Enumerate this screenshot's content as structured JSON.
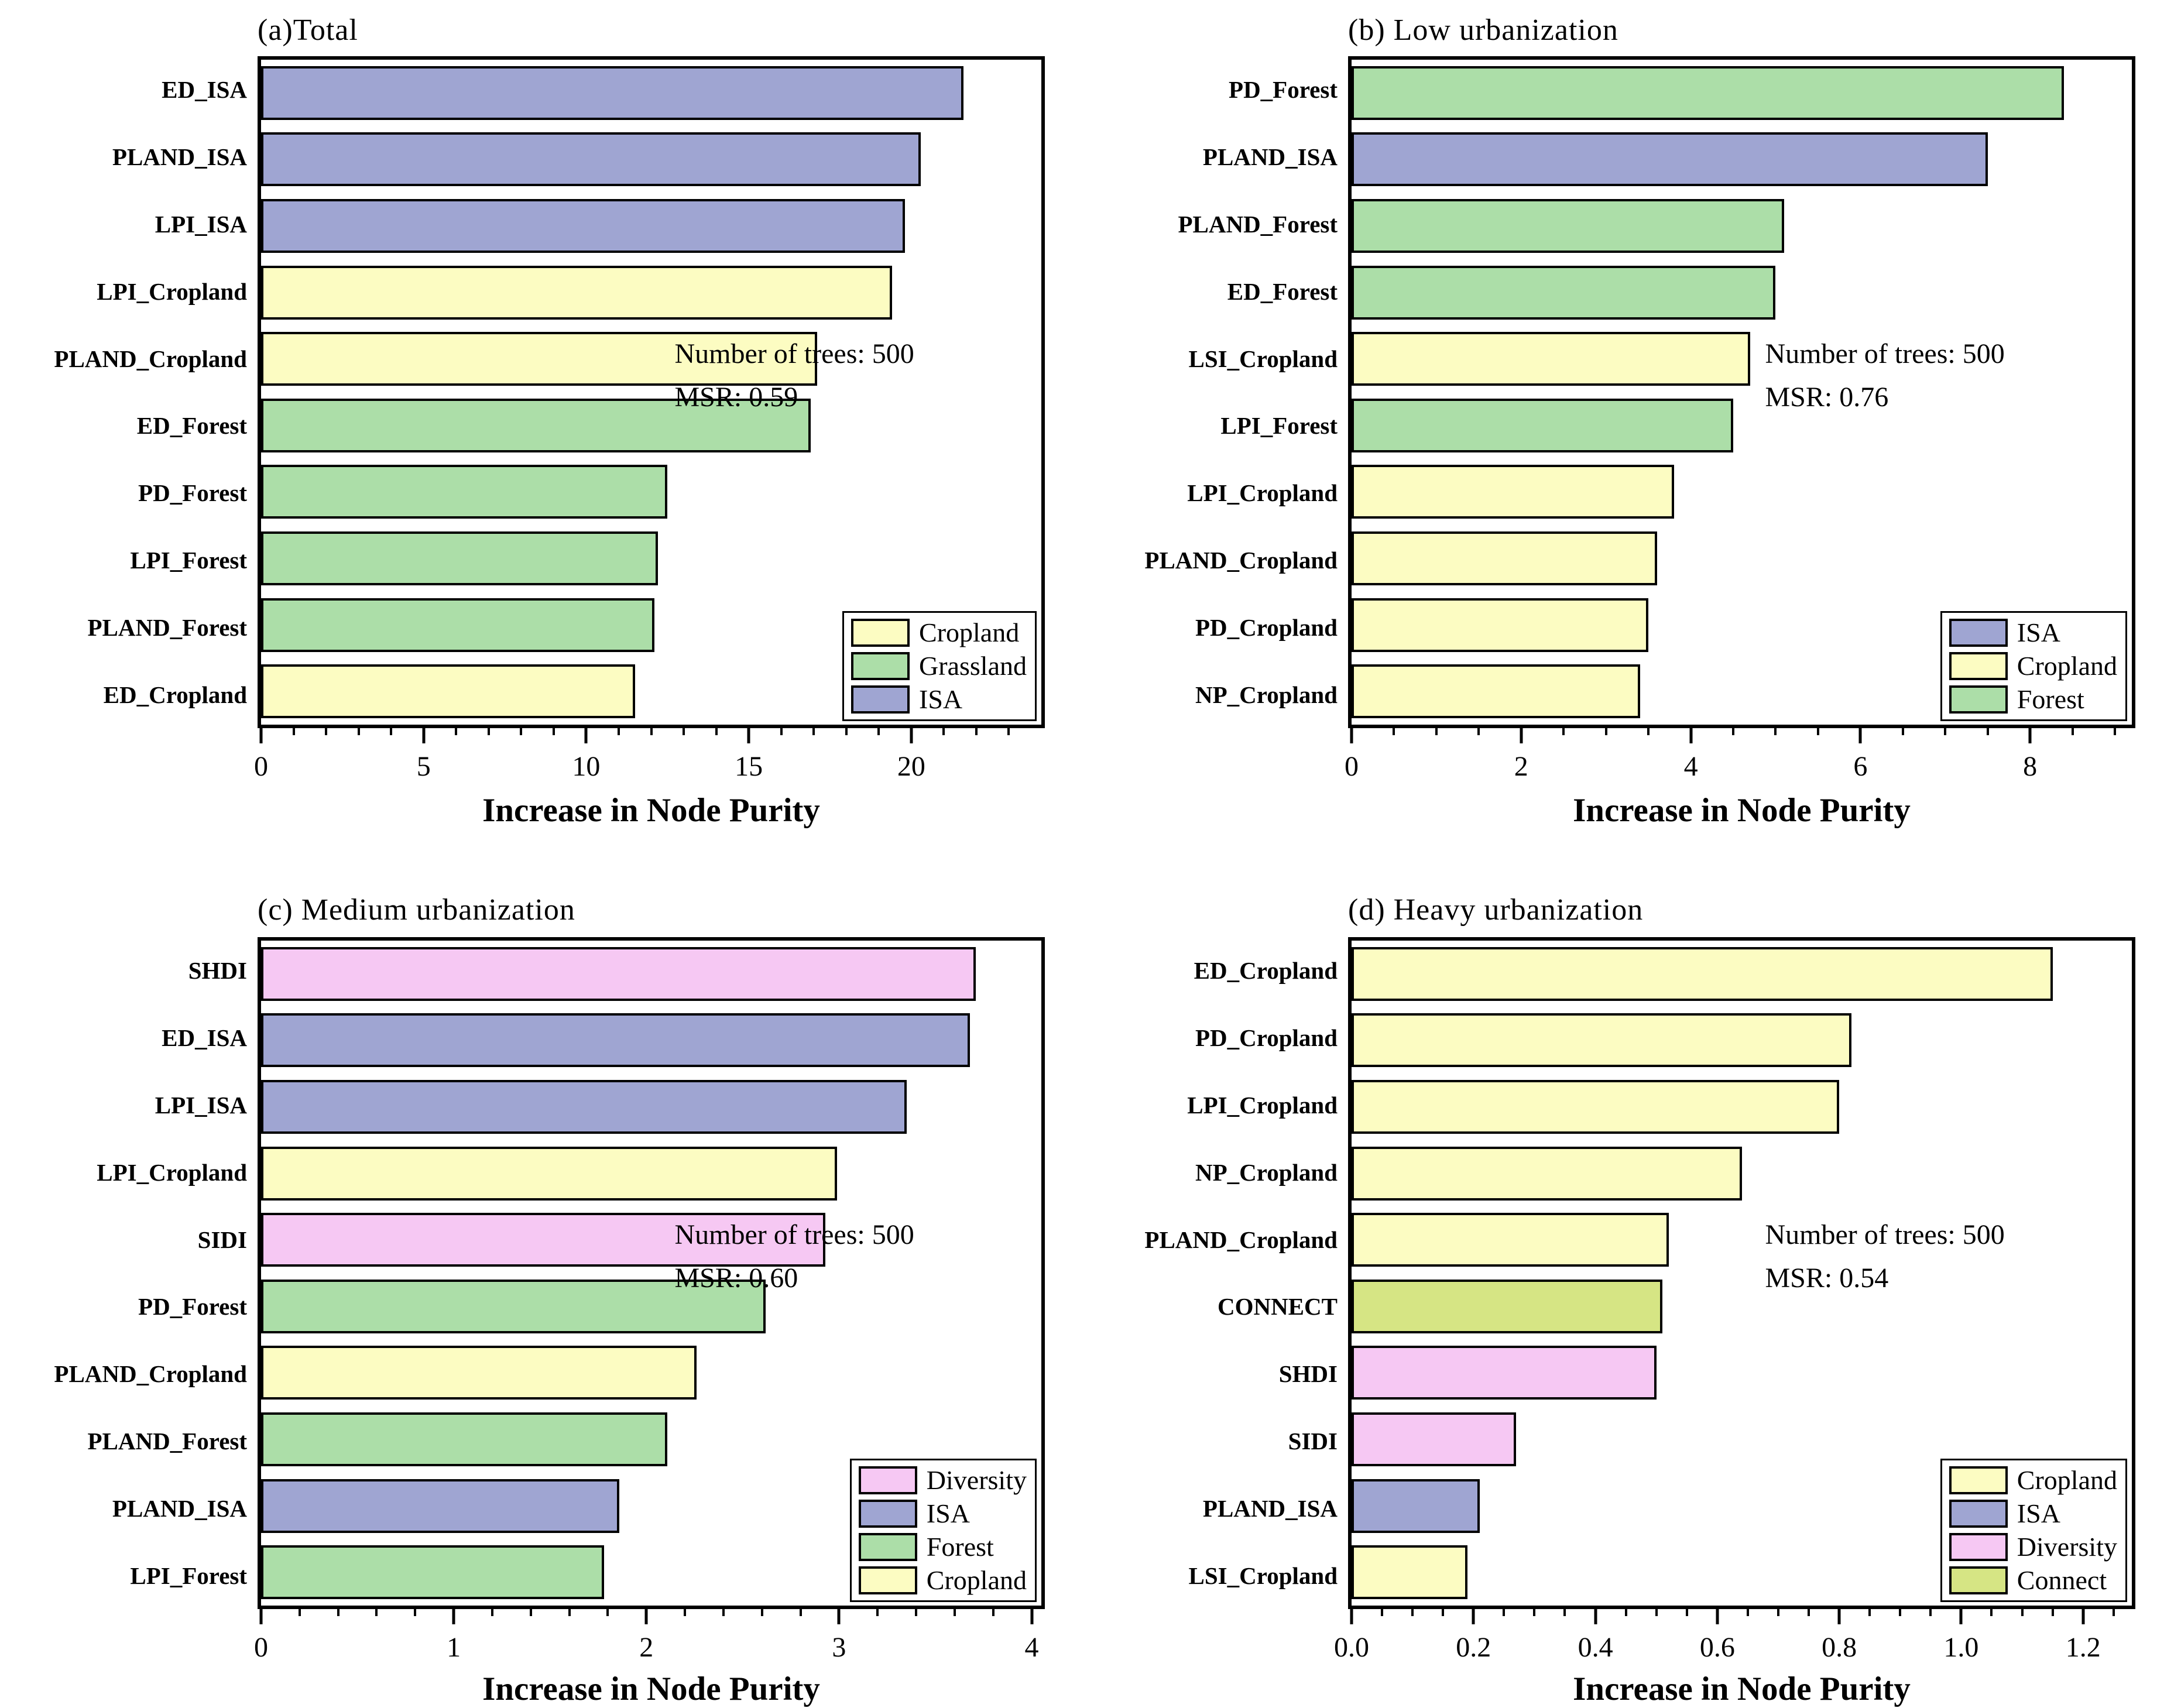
{
  "figure": {
    "background": "#ffffff",
    "xlabel_shared": "Increase in Node Purity"
  },
  "colors": {
    "Cropland": "#FCFCC2",
    "Grassland": "#ACDEA8",
    "Forest": "#ACDEA8",
    "ISA": "#9FA5D2",
    "Diversity": "#F6C8F3",
    "Connect": "#D6E584"
  },
  "chart_data": [
    {
      "type": "bar",
      "orientation": "horizontal",
      "title": "(a)Total",
      "xlabel": "Increase in Node Purity",
      "annotation": [
        "Number of trees: 500",
        "MSR: 0.59"
      ],
      "categories": [
        "ED_ISA",
        "PLAND_ISA",
        "LPI_ISA",
        "LPI_Cropland",
        "PLAND_Cropland",
        "ED_Forest",
        "PD_Forest",
        "LPI_Forest",
        "PLAND_Forest",
        "ED_Cropland"
      ],
      "values": [
        21.6,
        20.3,
        19.8,
        19.4,
        17.1,
        16.9,
        12.5,
        12.2,
        12.1,
        11.5
      ],
      "groups": [
        "ISA",
        "ISA",
        "ISA",
        "Cropland",
        "Cropland",
        "Grassland",
        "Grassland",
        "Grassland",
        "Grassland",
        "Cropland"
      ],
      "xlim": [
        0,
        24
      ],
      "xtick_values": [
        0,
        5,
        10,
        15,
        20
      ],
      "xtick_labels": [
        "0",
        "5",
        "10",
        "15",
        "20"
      ],
      "minor_step": 1,
      "grid": false,
      "legend": [
        "Cropland",
        "Grassland",
        "ISA"
      ],
      "legend_position": "lower right"
    },
    {
      "type": "bar",
      "orientation": "horizontal",
      "title": "(b) Low urbanization",
      "xlabel": "Increase in Node Purity",
      "annotation": [
        "Number of trees: 500",
        "MSR: 0.76"
      ],
      "categories": [
        "PD_Forest",
        "PLAND_ISA",
        "PLAND_Forest",
        "ED_Forest",
        "LSI_Cropland",
        "LPI_Forest",
        "LPI_Cropland",
        "PLAND_Cropland",
        "PD_Cropland",
        "NP_Cropland"
      ],
      "values": [
        8.4,
        7.5,
        5.1,
        5.0,
        4.7,
        4.5,
        3.8,
        3.6,
        3.5,
        3.4
      ],
      "groups": [
        "Forest",
        "ISA",
        "Forest",
        "Forest",
        "Cropland",
        "Forest",
        "Cropland",
        "Cropland",
        "Cropland",
        "Cropland"
      ],
      "xlim": [
        0,
        9.2
      ],
      "xtick_values": [
        0,
        2,
        4,
        6,
        8
      ],
      "xtick_labels": [
        "0",
        "2",
        "4",
        "6",
        "8"
      ],
      "minor_step": 0.5,
      "grid": false,
      "legend": [
        "ISA",
        "Cropland",
        "Forest"
      ],
      "legend_position": "lower right"
    },
    {
      "type": "bar",
      "orientation": "horizontal",
      "title": "(c) Medium urbanization",
      "xlabel": "Increase in Node Purity",
      "annotation": [
        "Number of trees: 500",
        "MSR: 0.60"
      ],
      "categories": [
        "SHDI",
        "ED_ISA",
        "LPI_ISA",
        "LPI_Cropland",
        "SIDI",
        "PD_Forest",
        "PLAND_Cropland",
        "PLAND_Forest",
        "PLAND_ISA",
        "LPI_Forest"
      ],
      "values": [
        3.71,
        3.68,
        3.35,
        2.99,
        2.93,
        2.62,
        2.26,
        2.11,
        1.86,
        1.78
      ],
      "groups": [
        "Diversity",
        "ISA",
        "ISA",
        "Cropland",
        "Diversity",
        "Forest",
        "Cropland",
        "Forest",
        "ISA",
        "Forest"
      ],
      "xlim": [
        0,
        4.05
      ],
      "xtick_values": [
        0,
        1,
        2,
        3,
        4
      ],
      "xtick_labels": [
        "0",
        "1",
        "2",
        "3",
        "4"
      ],
      "minor_step": 0.2,
      "grid": false,
      "legend": [
        "Diversity",
        "ISA",
        "Forest",
        "Cropland"
      ],
      "legend_position": "lower right"
    },
    {
      "type": "bar",
      "orientation": "horizontal",
      "title": "(d) Heavy urbanization",
      "xlabel": "Increase in Node Purity",
      "annotation": [
        "Number of trees: 500",
        "MSR: 0.54"
      ],
      "categories": [
        "ED_Cropland",
        "PD_Cropland",
        "LPI_Cropland",
        "NP_Cropland",
        "PLAND_Cropland",
        "CONNECT",
        "SHDI",
        "SIDI",
        "PLAND_ISA",
        "LSI_Cropland"
      ],
      "values": [
        1.15,
        0.82,
        0.8,
        0.64,
        0.52,
        0.51,
        0.5,
        0.27,
        0.21,
        0.19
      ],
      "groups": [
        "Cropland",
        "Cropland",
        "Cropland",
        "Cropland",
        "Cropland",
        "Connect",
        "Diversity",
        "Diversity",
        "ISA",
        "Cropland"
      ],
      "xlim": [
        0,
        1.28
      ],
      "xtick_values": [
        0,
        0.2,
        0.4,
        0.6,
        0.8,
        1.0,
        1.2
      ],
      "xtick_labels": [
        "0.0",
        "0.2",
        "0.4",
        "0.6",
        "0.8",
        "1.0",
        "1.2"
      ],
      "minor_step": 0.05,
      "grid": false,
      "legend": [
        "Cropland",
        "ISA",
        "Diversity",
        "Connect"
      ],
      "legend_position": "lower right"
    }
  ]
}
